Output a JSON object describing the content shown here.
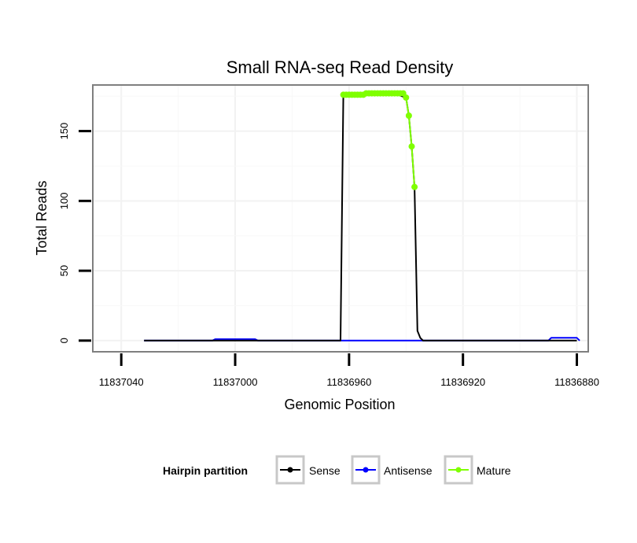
{
  "chart_data": {
    "type": "line",
    "title": "Small RNA-seq Read Density",
    "xlabel": "Genomic Position",
    "ylabel": "Total Reads",
    "x_reversed": true,
    "xlim": [
      11837050,
      11836876
    ],
    "ylim": [
      -8,
      183
    ],
    "x_ticks": [
      11837040,
      11837000,
      11836960,
      11836920,
      11836880
    ],
    "x_tick_labels": [
      "11837040",
      "11837000",
      "11836960",
      "11836920",
      "11836880"
    ],
    "y_ticks": [
      0,
      50,
      100,
      150
    ],
    "y_tick_labels": [
      "0",
      "50",
      "100",
      "150"
    ],
    "grid": true,
    "legend": {
      "title": "Hairpin partition",
      "position": "bottom",
      "entries": [
        {
          "label": "Sense",
          "color": "#000000"
        },
        {
          "label": "Antisense",
          "color": "#0000ff"
        },
        {
          "label": "Mature",
          "color": "#7fff00"
        }
      ]
    },
    "series": [
      {
        "name": "Sense",
        "color": "#000000",
        "x": [
          11837032,
          11836963,
          11836962,
          11836958,
          11836945,
          11836943,
          11836940,
          11836939,
          11836938,
          11836937,
          11836936,
          11836935,
          11836934,
          11836933,
          11836932,
          11836880
        ],
        "y": [
          0,
          0,
          176,
          176,
          177,
          176,
          174,
          161,
          139,
          110,
          7,
          2,
          0,
          0,
          0,
          0
        ]
      },
      {
        "name": "Antisense",
        "color": "#0000ff",
        "x": [
          11837032,
          11837008,
          11837007,
          11836993,
          11836992,
          11836890,
          11836889,
          11836880,
          11836879
        ],
        "y": [
          0,
          0,
          1,
          1,
          0,
          0,
          2,
          2,
          0
        ]
      },
      {
        "name": "Mature",
        "color": "#7fff00",
        "x": [
          11836962,
          11836961,
          11836960,
          11836959,
          11836958,
          11836957,
          11836956,
          11836955,
          11836954,
          11836953,
          11836952,
          11836951,
          11836950,
          11836949,
          11836948,
          11836947,
          11836946,
          11836945,
          11836944,
          11836943,
          11836942,
          11836941,
          11836940,
          11836939,
          11836938,
          11836937
        ],
        "y": [
          176,
          176,
          176,
          176,
          176,
          176,
          176,
          176,
          177,
          177,
          177,
          177,
          177,
          177,
          177,
          177,
          177,
          177,
          177,
          177,
          177,
          177,
          174,
          161,
          139,
          110
        ]
      }
    ]
  }
}
